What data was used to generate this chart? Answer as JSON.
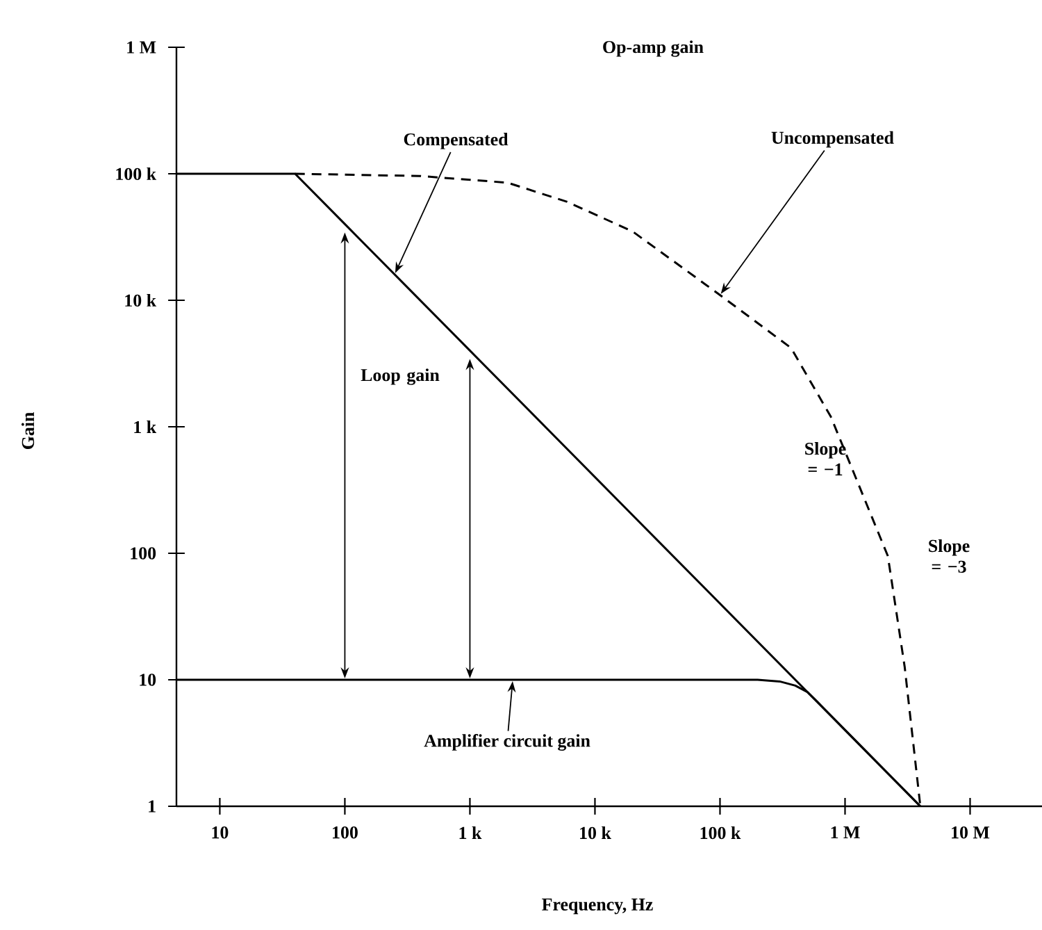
{
  "chart_data": {
    "type": "line",
    "title": "Op-amp gain",
    "xlabel": "Frequency, Hz",
    "ylabel": "Gain",
    "log": "xy",
    "marker": "none",
    "xlim": [
      4.5,
      37600000
    ],
    "ylim": [
      1,
      1000000
    ],
    "xticks": [
      10,
      100,
      {
        "value": 1000,
        "label": "1 k"
      },
      {
        "value": 10000,
        "label": "10 k"
      },
      {
        "value": 100000,
        "label": "100 k"
      },
      {
        "value": 1000000,
        "label": "1 M"
      },
      {
        "value": 10000000,
        "label": "10 M"
      }
    ],
    "yticks": [
      1,
      10,
      100,
      {
        "value": 1000,
        "label": "1 k"
      },
      {
        "value": 10000,
        "label": "10 k"
      },
      {
        "value": 100000,
        "label": "100 k"
      },
      {
        "value": 1000000,
        "label": "1 M"
      }
    ],
    "series": [
      {
        "color": "#000000",
        "line_style": "solid",
        "x": [
          4.5,
          40,
          100,
          1000,
          4000000
        ],
        "values": [
          100000,
          100000,
          40000,
          4000,
          1
        ]
      },
      {
        "color": "#000000",
        "line_style": "dashed",
        "x": [
          40,
          400,
          2000,
          6000,
          20000,
          100000,
          370000,
          770000,
          2200000,
          3000000,
          4000000
        ],
        "values": [
          100000,
          96000,
          85000,
          60000,
          35000,
          11000,
          4200,
          1200,
          95,
          12.6,
          1
        ]
      },
      {
        "color": "#000000",
        "line_style": "solid",
        "x": [
          4.5,
          100,
          1000,
          200000,
          300000,
          400000,
          500000,
          600000,
          4000000
        ],
        "values": [
          10,
          10,
          10,
          10,
          9.7,
          9,
          8,
          6.7,
          1
        ]
      }
    ],
    "annotations": [
      {
        "text": "Compensated",
        "x": 250,
        "y": 16000
      },
      {
        "text": "Uncompensated",
        "x": 100000,
        "y": 11000
      },
      "Slope = −1",
      "Loop gain",
      "Slope = −3",
      {
        "text": "Amplifier circuit gain",
        "x": 2200,
        "y": 10
      }
    ]
  }
}
